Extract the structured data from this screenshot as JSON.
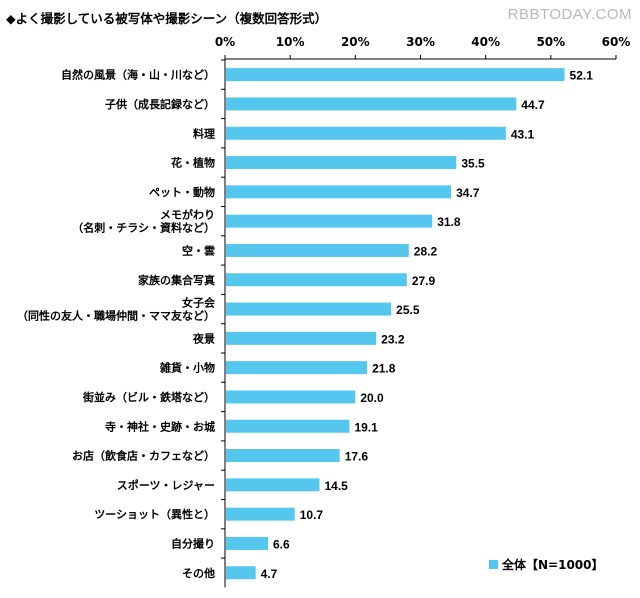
{
  "chart_data": {
    "type": "bar",
    "orientation": "horizontal",
    "title": "◆よく撮影している被写体や撮影シーン（複数回答形式）",
    "xlim": [
      0,
      60
    ],
    "x_ticks": [
      "0%",
      "10%",
      "20%",
      "30%",
      "40%",
      "50%",
      "60%"
    ],
    "categories": [
      [
        "自然の風景（海・山・川など）"
      ],
      [
        "子供（成長記録など）"
      ],
      [
        "料理"
      ],
      [
        "花・植物"
      ],
      [
        "ペット・動物"
      ],
      [
        "メモがわり",
        "（名刺・チラシ・資料など）"
      ],
      [
        "空・雲"
      ],
      [
        "家族の集合写真"
      ],
      [
        "女子会",
        "（同性の友人・職場仲間・ママ友など）"
      ],
      [
        "夜景"
      ],
      [
        "雑貨・小物"
      ],
      [
        "街並み（ビル・鉄塔など）"
      ],
      [
        "寺・神社・史跡・お城"
      ],
      [
        "お店（飲食店・カフェなど）"
      ],
      [
        "スポーツ・レジャー"
      ],
      [
        "ツーショット（異性と）"
      ],
      [
        "自分撮り"
      ],
      [
        "その他"
      ]
    ],
    "values": [
      52.1,
      44.7,
      43.1,
      35.5,
      34.7,
      31.8,
      28.2,
      27.9,
      25.5,
      23.2,
      21.8,
      20.0,
      19.1,
      17.6,
      14.5,
      10.7,
      6.6,
      4.7
    ],
    "value_labels": [
      "52.1",
      "44.7",
      "43.1",
      "35.5",
      "34.7",
      "31.8",
      "28.2",
      "27.9",
      "25.5",
      "23.2",
      "21.8",
      "20.0",
      "19.1",
      "17.6",
      "14.5",
      "10.7",
      "6.6",
      "4.7"
    ],
    "legend": {
      "label": "全体【N=1000】",
      "placement": "bottom-right"
    },
    "grid": false,
    "bar_color": "#55c6ee"
  },
  "watermark": "RBBTODAY.COM"
}
